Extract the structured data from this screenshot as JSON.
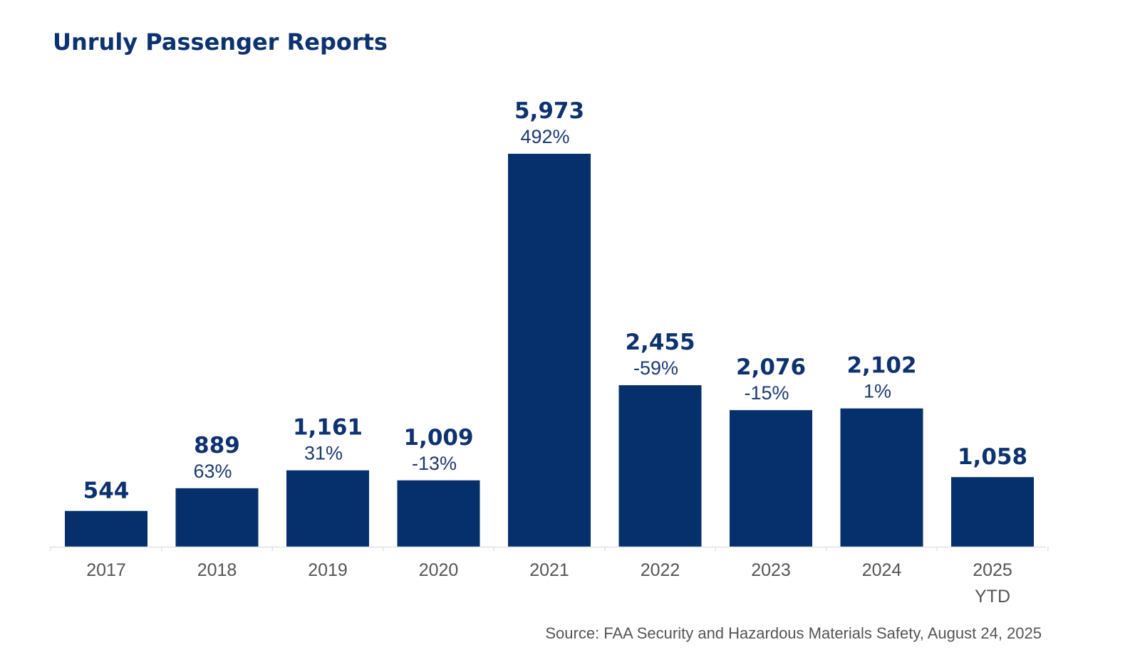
{
  "chart_data": {
    "type": "bar",
    "title": "Unruly Passenger Reports",
    "categories": [
      [
        "2017"
      ],
      [
        "2018"
      ],
      [
        "2019"
      ],
      [
        "2020"
      ],
      [
        "2021"
      ],
      [
        "2022"
      ],
      [
        "2023"
      ],
      [
        "2024"
      ],
      [
        "2025",
        "YTD"
      ]
    ],
    "values": [
      544,
      889,
      1161,
      1009,
      5973,
      2455,
      2076,
      2102,
      1058
    ],
    "value_labels": [
      "544",
      "889",
      "1,161",
      "1,009",
      "5,973",
      "2,455",
      "2,076",
      "2,102",
      "1,058"
    ],
    "pct_labels": [
      "",
      "63%",
      "31%",
      "-13%",
      "492%",
      "-59%",
      "-15%",
      "1%",
      ""
    ],
    "xlabel": "",
    "ylabel": "",
    "ylim": [
      0,
      5973
    ],
    "grid": false,
    "legend": "none",
    "source": "Source: FAA Security and Hazardous Materials Safety, August 24, 2025",
    "colors": {
      "bar": "#05306b",
      "title": "#0d3270",
      "value_label": "#0d3270",
      "pct_label": "#1b3a72",
      "tick_label": "#555555",
      "axis": "#e2e2e2"
    }
  }
}
